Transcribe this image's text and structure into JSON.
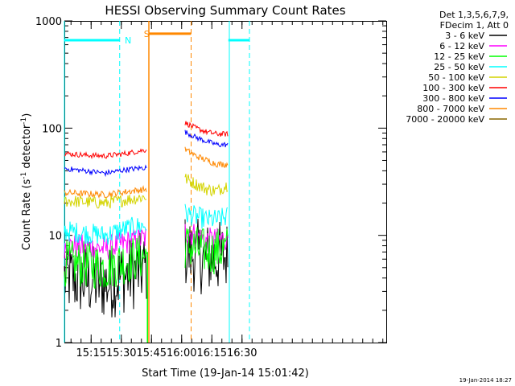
{
  "chart_data": {
    "type": "line",
    "title": "HESSI Observing Summary Count Rates",
    "xlabel": "Start Time (19-Jan-14 15:01:42)",
    "ylabel_main": "Count Rate (s",
    "ylabel_sup1": "-1",
    "ylabel_mid": " detector",
    "ylabel_sup2": "-1",
    "ylabel_end": ")",
    "y_scale": "log",
    "ylim": [
      1,
      1000
    ],
    "xlim_minutes_after_start": [
      0,
      160
    ],
    "x_ticks": [
      {
        "label": "15:15",
        "t": 13.3
      },
      {
        "label": "15:30",
        "t": 28.3
      },
      {
        "label": "15:45",
        "t": 43.3
      },
      {
        "label": "16:00",
        "t": 58.3
      },
      {
        "label": "16:15",
        "t": 73.3
      },
      {
        "label": "16:30",
        "t": 88.3
      }
    ],
    "y_ticks": [
      {
        "label": "1",
        "v": 1
      },
      {
        "label": "10",
        "v": 10
      },
      {
        "label": "100",
        "v": 100
      },
      {
        "label": "1000",
        "v": 1000
      }
    ],
    "legend": {
      "placement": "right",
      "header": [
        "Det 1,3,5,6,7,9,",
        "FDecim 1, Att 0"
      ],
      "entries": [
        {
          "label": "3 - 6 keV",
          "color": "#000000"
        },
        {
          "label": "6 - 12 keV",
          "color": "#ff00ff"
        },
        {
          "label": "12 - 25 keV",
          "color": "#00ff00"
        },
        {
          "label": "25 - 50 keV",
          "color": "#00ffff"
        },
        {
          "label": "50 - 100 keV",
          "color": "#d4d400"
        },
        {
          "label": "100 - 300 keV",
          "color": "#ff0000"
        },
        {
          "label": "300 - 800 keV",
          "color": "#0000ff"
        },
        {
          "label": "800 - 7000 keV",
          "color": "#ff8800"
        },
        {
          "label": "7000 - 20000 keV",
          "color": "#886600"
        }
      ]
    },
    "segments": [
      {
        "t_start": 0,
        "t_end": 41
      },
      {
        "t_start": 60,
        "t_end": 81.5
      }
    ],
    "series": [
      {
        "name": "3 - 6 keV",
        "color": "#000000",
        "seg1": [
          4,
          3.8,
          3.5,
          4.2,
          5
        ],
        "seg2": [
          7,
          6.5,
          6,
          6.2,
          6.5
        ],
        "noise": 0.35
      },
      {
        "name": "6 - 12 keV",
        "color": "#ff00ff",
        "seg1": [
          8,
          7.8,
          7.5,
          8.5,
          9.5
        ],
        "seg2": [
          11,
          10,
          9,
          9,
          9.5
        ],
        "noise": 0.12
      },
      {
        "name": "12 - 25 keV",
        "color": "#00ff00",
        "seg1": [
          5.5,
          5.3,
          5,
          5.8,
          6.5
        ],
        "seg2": [
          8,
          7.5,
          7,
          7.2,
          7.5
        ],
        "noise": 0.22
      },
      {
        "name": "25 - 50 keV",
        "color": "#00ffff",
        "seg1": [
          11,
          10.5,
          10,
          11.5,
          12.5
        ],
        "seg2": [
          16,
          15,
          14,
          14,
          15
        ],
        "noise": 0.1
      },
      {
        "name": "50 - 100 keV",
        "color": "#d4d400",
        "seg1": [
          21,
          20.5,
          20,
          21.5,
          23
        ],
        "seg2": [
          34,
          30,
          27,
          26,
          30
        ],
        "noise": 0.06
      },
      {
        "name": "100 - 300 keV",
        "color": "#ff0000",
        "seg1": [
          58,
          56,
          55,
          58,
          63
        ],
        "seg2": [
          112,
          100,
          92,
          88,
          88
        ],
        "noise": 0.025
      },
      {
        "name": "300 - 800 keV",
        "color": "#0000ff",
        "seg1": [
          42,
          40,
          38,
          41,
          43
        ],
        "seg2": [
          92,
          82,
          75,
          70,
          70
        ],
        "noise": 0.025
      },
      {
        "name": "800 - 7000 keV",
        "color": "#ff8800",
        "seg1": [
          25,
          24.5,
          24,
          25.5,
          27
        ],
        "seg2": [
          63,
          55,
          50,
          46,
          46
        ],
        "noise": 0.03
      }
    ],
    "spikes": [
      {
        "t": 41.3,
        "color": "#00ff00",
        "v_top": 7
      },
      {
        "t": 42.0,
        "color": "#ff8800",
        "v_top": 1000
      }
    ],
    "flag_lines": [
      {
        "label": "N",
        "color": "#00ffff",
        "dash_t": [
          0,
          27.5,
          82,
          92
        ],
        "bar": [
          [
            0,
            27.5
          ],
          [
            81.5,
            92
          ]
        ],
        "bar_v": 660,
        "label_t": 30
      },
      {
        "label": "S",
        "color": "#ff8800",
        "dash_t": [
          42,
          63
        ],
        "bar": [
          [
            42,
            63
          ]
        ],
        "bar_v": 760,
        "label_t": 39.5
      }
    ]
  },
  "timestamp": "19-Jan-2014 18:27"
}
